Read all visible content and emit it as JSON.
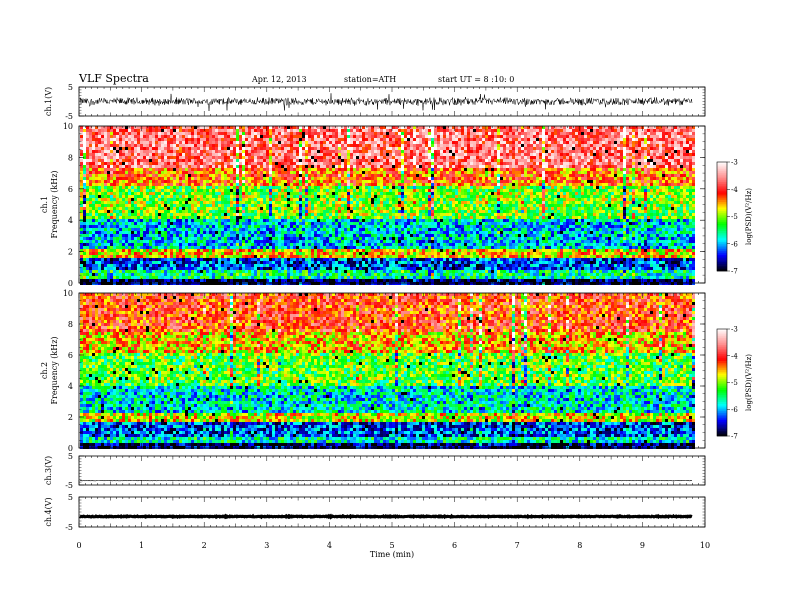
{
  "header": {
    "title": "VLF  Spectra",
    "date": "Apr. 12, 2013",
    "station": "station=ATH",
    "start": "start  UT  =   8  :10: 0"
  },
  "colors": {
    "background": "#ffffff",
    "axis": "#000000",
    "colormap": [
      "#000000",
      "#0000ff",
      "#00ffff",
      "#00ff00",
      "#ffff00",
      "#ff0000",
      "#ff9090",
      "#ffffff"
    ]
  },
  "chart_data": [
    {
      "type": "line",
      "panel": "ch1",
      "ylabel": "ch.1(V)",
      "yticks": [
        "5",
        "-5"
      ],
      "ylim": [
        -5,
        5
      ],
      "xlim": [
        0,
        10
      ],
      "x_extent": [
        0,
        9.8
      ],
      "baseline": 0,
      "amplitude": 1.4,
      "grid": false
    },
    {
      "type": "heatmap",
      "panel": "ch1-spectrogram",
      "ylabel_line1": "ch.1",
      "ylabel_line2": "Frequency  (kHz)",
      "yticks": [
        "0",
        "2",
        "4",
        "6",
        "8",
        "10"
      ],
      "ylim": [
        0,
        10
      ],
      "xlim": [
        0,
        10
      ],
      "x_extent": [
        0,
        9.8
      ],
      "colorbar": {
        "label": "log(PSD)(V²/Hz)",
        "ticks": [
          "-3",
          "-4",
          "-5",
          "-6",
          "-7"
        ],
        "range": [
          -7,
          -3
        ]
      },
      "bands": [
        {
          "freq": [
            0,
            0.3
          ],
          "level": -6.8
        },
        {
          "freq": [
            0.3,
            0.8
          ],
          "level": -5.6
        },
        {
          "freq": [
            0.8,
            1.6
          ],
          "level": -6.3
        },
        {
          "freq": [
            1.6,
            2.2
          ],
          "level": -4.6
        },
        {
          "freq": [
            2.2,
            4.0
          ],
          "level": -5.9
        },
        {
          "freq": [
            4.0,
            6.2
          ],
          "level": -5.1
        },
        {
          "freq": [
            6.2,
            7.4
          ],
          "level": -4.3
        },
        {
          "freq": [
            7.4,
            10
          ],
          "level": -3.7
        }
      ]
    },
    {
      "type": "heatmap",
      "panel": "ch2-spectrogram",
      "ylabel_line1": "ch.2",
      "ylabel_line2": "Frequency  (kHz)",
      "yticks": [
        "0",
        "2",
        "4",
        "6",
        "8",
        "10"
      ],
      "ylim": [
        0,
        10
      ],
      "xlim": [
        0,
        10
      ],
      "x_extent": [
        0,
        9.8
      ],
      "colorbar": {
        "label": "log(PSD)(V²/Hz)",
        "ticks": [
          "-3",
          "-4",
          "-5",
          "-6",
          "-7"
        ],
        "range": [
          -7,
          -3
        ]
      },
      "bands": [
        {
          "freq": [
            0,
            0.3
          ],
          "level": -6.8
        },
        {
          "freq": [
            0.3,
            0.8
          ],
          "level": -5.7
        },
        {
          "freq": [
            0.8,
            1.6
          ],
          "level": -6.3
        },
        {
          "freq": [
            1.6,
            2.2
          ],
          "level": -4.8
        },
        {
          "freq": [
            2.2,
            4.0
          ],
          "level": -5.8
        },
        {
          "freq": [
            4.0,
            6.2
          ],
          "level": -5.2
        },
        {
          "freq": [
            6.2,
            7.4
          ],
          "level": -4.6
        },
        {
          "freq": [
            7.4,
            10
          ],
          "level": -4.1
        }
      ]
    },
    {
      "type": "line",
      "panel": "ch3",
      "ylabel": "ch.3(V)",
      "yticks": [
        "5",
        "-5"
      ],
      "ylim": [
        -5,
        5
      ],
      "xlim": [
        0,
        10
      ],
      "x_extent": [
        0,
        9.8
      ],
      "baseline": -3.5,
      "amplitude": 0.08,
      "grid": false
    },
    {
      "type": "line",
      "panel": "ch4",
      "ylabel": "ch.4(V)",
      "yticks": [
        "5",
        "-5"
      ],
      "ylim": [
        -5,
        5
      ],
      "xlim": [
        0,
        10
      ],
      "x_extent": [
        0,
        9.8
      ],
      "baseline": -1.5,
      "amplitude": 0.15,
      "grid": false,
      "xlabel": "Time  (min)",
      "xticks": [
        "0",
        "1",
        "2",
        "3",
        "4",
        "5",
        "6",
        "7",
        "8",
        "9",
        "10"
      ]
    }
  ]
}
